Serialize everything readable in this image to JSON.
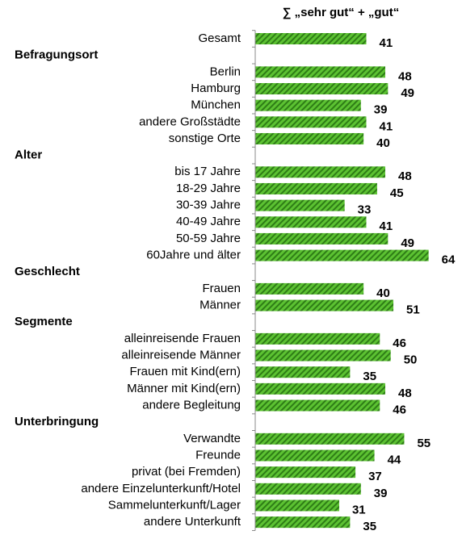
{
  "chart_data": {
    "type": "bar",
    "title": "∑ „sehr gut“ + „gut“",
    "color": "#4caf2a",
    "xlim": [
      0,
      65
    ],
    "groups": [
      {
        "categories": [
          "Gesamt"
        ],
        "values": [
          41
        ]
      },
      {
        "name": "Befragungsort",
        "categories": [
          "Berlin",
          "Hamburg",
          "München",
          "andere Großstädte",
          "sonstige Orte"
        ],
        "values": [
          48,
          49,
          39,
          41,
          40
        ]
      },
      {
        "name": "Alter",
        "categories": [
          "bis 17 Jahre",
          "18-29 Jahre",
          "30-39 Jahre",
          "40-49 Jahre",
          "50-59 Jahre",
          "60Jahre und älter"
        ],
        "values": [
          48,
          45,
          33,
          41,
          49,
          64
        ]
      },
      {
        "name": "Geschlecht",
        "categories": [
          "Frauen",
          "Männer"
        ],
        "values": [
          40,
          51
        ]
      },
      {
        "name": "Segmente",
        "categories": [
          "alleinreisende Frauen",
          "alleinreisende Männer",
          "Frauen mit Kind(ern)",
          "Männer mit Kind(ern)",
          "andere Begleitung"
        ],
        "values": [
          46,
          50,
          35,
          48,
          46
        ]
      },
      {
        "name": "Unterbringung",
        "categories": [
          "Verwandte",
          "Freunde",
          "privat (bei Fremden)",
          "andere Einzelunterkunft/Hotel",
          "Sammelunterkunft/Lager",
          "andere Unterkunft"
        ],
        "values": [
          55,
          44,
          37,
          39,
          31,
          35
        ]
      }
    ]
  }
}
